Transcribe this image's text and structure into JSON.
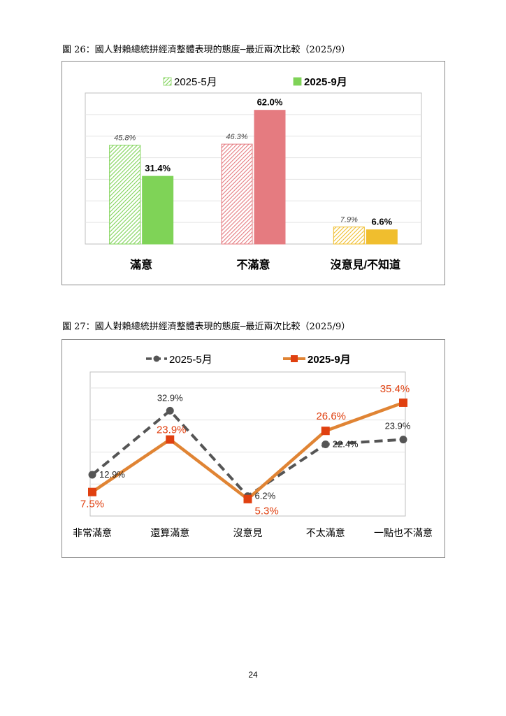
{
  "figures": [
    {
      "caption": "圖 26：國人對賴總統拼經濟整體表現的態度─最近兩次比較（2025/9）"
    },
    {
      "caption": "圖 27：國人對賴總統拼經濟整體表現的態度─最近兩次比較（2025/9）"
    }
  ],
  "page_number": "24",
  "chart_data": [
    {
      "type": "bar",
      "categories": [
        "滿意",
        "不滿意",
        "沒意見/不知道"
      ],
      "series": [
        {
          "name": "2025-5月",
          "values": [
            45.8,
            46.3,
            7.9
          ],
          "labels": [
            "45.8%",
            "46.3%",
            "7.9%"
          ],
          "style": "hatched"
        },
        {
          "name": "2025-9月",
          "values": [
            31.4,
            62.0,
            6.6
          ],
          "labels": [
            "31.4%",
            "62.0%",
            "6.6%"
          ],
          "style": "solid"
        }
      ],
      "category_colors": [
        "#7fd357",
        "#e57b80",
        "#f0be2e"
      ],
      "ylim": [
        0,
        70
      ],
      "grid": true,
      "legend": "top-center"
    },
    {
      "type": "line",
      "categories": [
        "非常滿意",
        "還算滿意",
        "沒意見",
        "不太滿意",
        "一點也不滿意"
      ],
      "series": [
        {
          "name": "2025-5月",
          "values": [
            12.9,
            32.9,
            6.2,
            22.4,
            23.9
          ],
          "labels": [
            "12.9%",
            "32.9%",
            "6.2%",
            "22.4%",
            "23.9%"
          ],
          "color": "#555555",
          "dash": true,
          "marker": "circle"
        },
        {
          "name": "2025-9月",
          "values": [
            7.5,
            23.9,
            5.3,
            26.6,
            35.4
          ],
          "labels": [
            "7.5%",
            "23.9%",
            "5.3%",
            "26.6%",
            "35.4%"
          ],
          "color": "#e08434",
          "marker_color": "#e04010",
          "dash": false,
          "marker": "square"
        }
      ],
      "ylim": [
        0,
        45
      ],
      "grid": true,
      "legend": "top-center"
    }
  ]
}
